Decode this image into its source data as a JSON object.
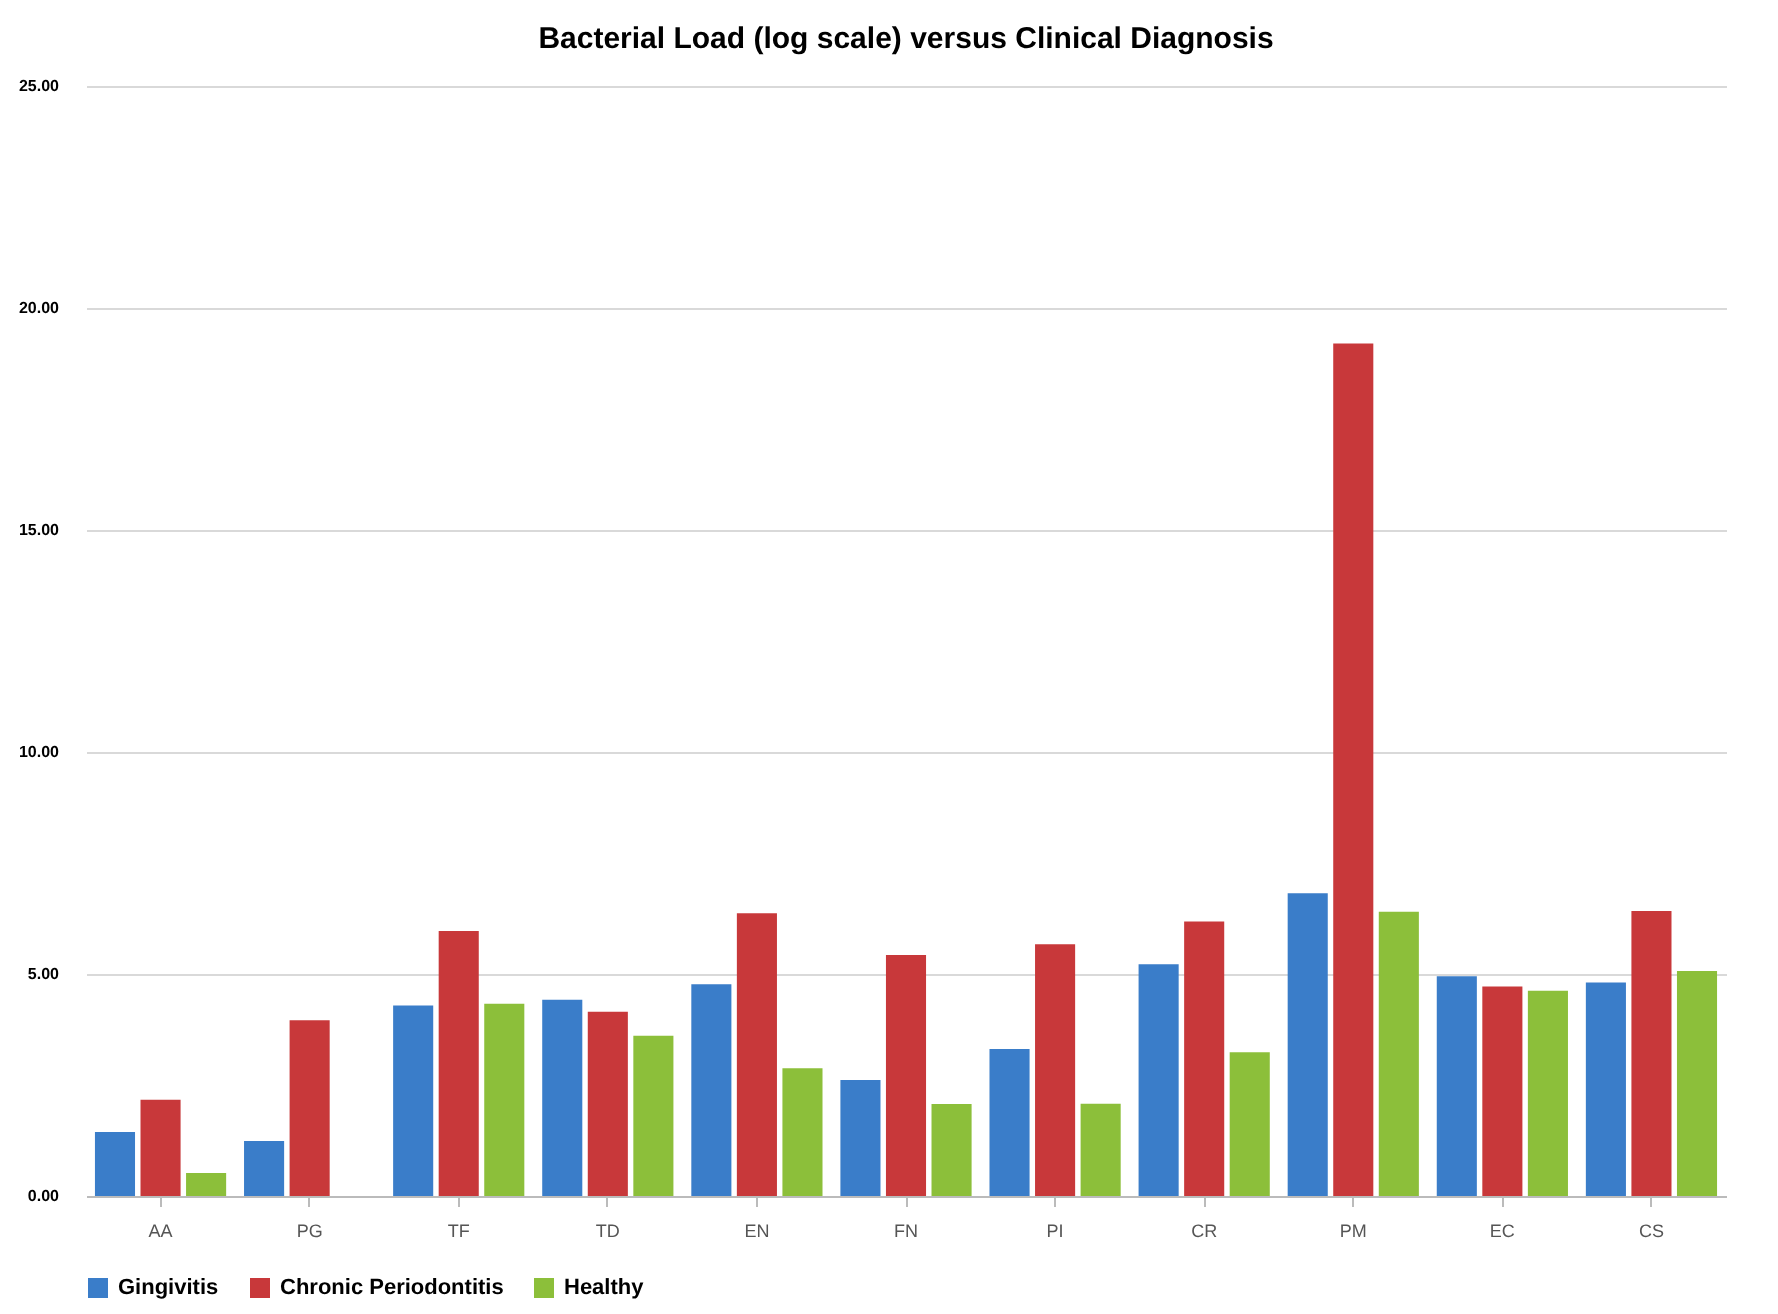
{
  "chart_data": {
    "type": "bar",
    "title": "Bacterial Load (log scale) versus Clinical Diagnosis",
    "categories": [
      "AA",
      "PG",
      "TF",
      "TD",
      "EN",
      "FN",
      "PI",
      "CR",
      "PM",
      "EC",
      "CS"
    ],
    "series": [
      {
        "name": "Gingivitis",
        "color": "#3a7dc9",
        "values": [
          1.44,
          1.24,
          4.29,
          4.42,
          4.77,
          2.61,
          3.31,
          5.22,
          6.82,
          4.95,
          4.81
        ]
      },
      {
        "name": "Chronic Periodontitis",
        "color": "#c8383a",
        "values": [
          2.17,
          3.96,
          5.97,
          4.15,
          6.37,
          5.43,
          5.67,
          6.18,
          19.2,
          4.72,
          6.42
        ]
      },
      {
        "name": "Healthy",
        "color": "#8cbf3a",
        "values": [
          0.52,
          null,
          4.33,
          3.61,
          2.88,
          2.07,
          2.08,
          3.24,
          6.4,
          4.62,
          5.07
        ]
      }
    ],
    "ylim": [
      0,
      25
    ],
    "yticks": [
      {
        "value": 0,
        "label": "0.00"
      },
      {
        "value": 5,
        "label": "5.00"
      },
      {
        "value": 10,
        "label": "10.00"
      },
      {
        "value": 15,
        "label": "15.00"
      },
      {
        "value": 20,
        "label": "20.00"
      },
      {
        "value": 25,
        "label": "25.00"
      }
    ],
    "grid": "y",
    "legend": "bottom"
  }
}
